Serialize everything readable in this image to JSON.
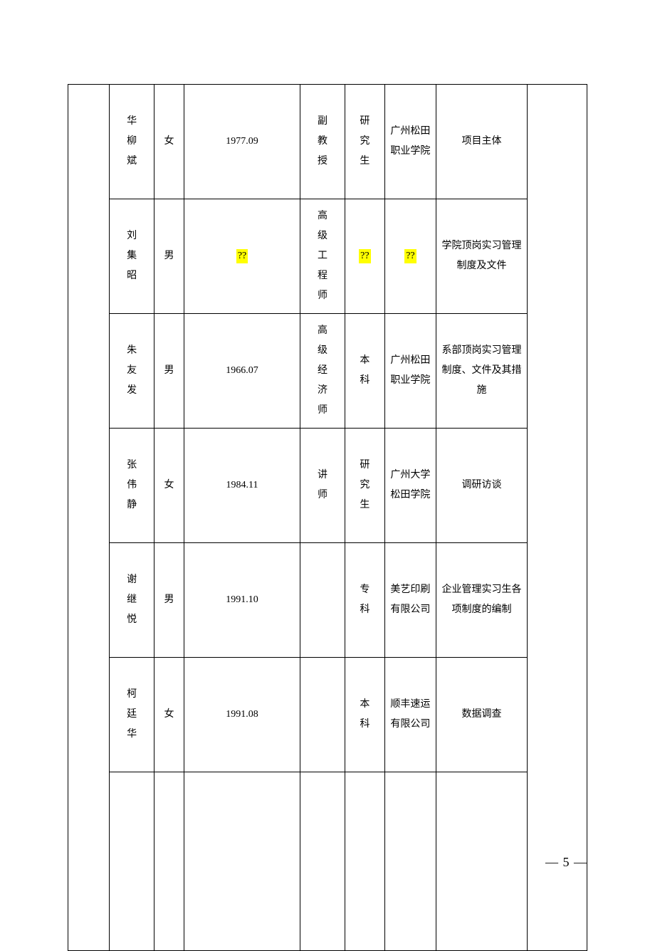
{
  "columns": [
    "",
    "name",
    "gender",
    "date",
    "title",
    "edu",
    "org",
    "role",
    ""
  ],
  "rows": [
    {
      "name": "华柳斌",
      "gender": "女",
      "date": "1977.09",
      "title": "副教授",
      "edu": "研究生",
      "org": "广州松田职业学院",
      "role": "项目主体",
      "highlights": {}
    },
    {
      "name": "刘集昭",
      "gender": "男",
      "date": "??",
      "title": "高级工程师",
      "edu": "??",
      "org": "??",
      "role": "学院顶岗实习管理制度及文件",
      "highlights": {
        "date": true,
        "edu": true,
        "org": true
      }
    },
    {
      "name": "朱友发",
      "gender": "男",
      "date": "1966.07",
      "title": "高级经济师",
      "edu": "本科",
      "org": "广州松田职业学院",
      "role": "系部顶岗实习管理制度、文件及其措施",
      "highlights": {}
    },
    {
      "name": "张伟静",
      "gender": "女",
      "date": "1984.11",
      "title": "讲师",
      "edu": "研究生",
      "org": "广州大学松田学院",
      "role": "调研访谈",
      "highlights": {}
    },
    {
      "name": "谢继悦",
      "gender": "男",
      "date": "1991.10",
      "title": "",
      "edu": "专科",
      "org": "美艺印刷有限公司",
      "role": "企业管理实习生各项制度的编制",
      "highlights": {}
    },
    {
      "name": "柯廷华",
      "gender": "女",
      "date": "1991.08",
      "title": "",
      "edu": "本科",
      "org": "顺丰速运有限公司",
      "role": "数据调查",
      "highlights": {}
    }
  ],
  "pageLabel": "— 5 —",
  "style": {
    "highlight_color": "#ffff00",
    "border_color": "#000000",
    "background_color": "#ffffff",
    "text_color": "#000000",
    "cell_fontsize": 14,
    "pagenum_fontsize": 18
  }
}
